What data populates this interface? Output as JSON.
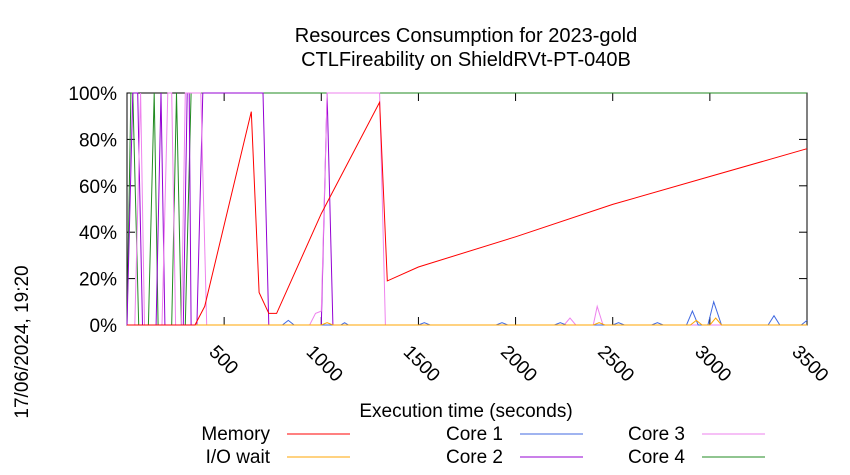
{
  "chart_data": {
    "type": "line",
    "title": "Resources Consumption for 2023-gold",
    "subtitle": "CTLFireability on ShieldRVt-PT-040B",
    "xlabel": "Execution time (seconds)",
    "ylabel": "",
    "side_label": "17/06/2024, 19:20",
    "xlim": [
      0,
      3500
    ],
    "ylim": [
      0,
      100
    ],
    "x_ticks": [
      500,
      1000,
      1500,
      2000,
      2500,
      3000,
      3500
    ],
    "y_ticks": [
      {
        "value": 0,
        "label": "0%"
      },
      {
        "value": 20,
        "label": "20%"
      },
      {
        "value": 40,
        "label": "40%"
      },
      {
        "value": 60,
        "label": "60%"
      },
      {
        "value": 80,
        "label": "80%"
      },
      {
        "value": 100,
        "label": "100%"
      }
    ],
    "grid": false,
    "legend_position": "bottom",
    "series": [
      {
        "name": "Memory",
        "color": "#ff0000",
        "points": [
          [
            0,
            0
          ],
          [
            350,
            0
          ],
          [
            400,
            8
          ],
          [
            640,
            92
          ],
          [
            680,
            14
          ],
          [
            730,
            5
          ],
          [
            770,
            5
          ],
          [
            1000,
            48
          ],
          [
            1300,
            96
          ],
          [
            1340,
            19
          ],
          [
            1500,
            25
          ],
          [
            2000,
            38
          ],
          [
            2500,
            52
          ],
          [
            3000,
            64
          ],
          [
            3500,
            76
          ]
        ]
      },
      {
        "name": "I/O wait",
        "color": "#ffa500",
        "points": [
          [
            0,
            0
          ],
          [
            1000,
            0
          ],
          [
            1030,
            1
          ],
          [
            1060,
            0
          ],
          [
            2400,
            0
          ],
          [
            2430,
            1
          ],
          [
            2460,
            0
          ],
          [
            2900,
            0
          ],
          [
            2930,
            2
          ],
          [
            2960,
            0
          ],
          [
            3000,
            0
          ],
          [
            3030,
            3
          ],
          [
            3060,
            0
          ],
          [
            3500,
            0
          ]
        ]
      },
      {
        "name": "Core 1",
        "color": "#4169e1",
        "points": [
          [
            0,
            0
          ],
          [
            800,
            0
          ],
          [
            830,
            2
          ],
          [
            860,
            0
          ],
          [
            1100,
            0
          ],
          [
            1120,
            1
          ],
          [
            1140,
            0
          ],
          [
            1500,
            0
          ],
          [
            1530,
            1
          ],
          [
            1560,
            0
          ],
          [
            1900,
            0
          ],
          [
            1930,
            1
          ],
          [
            1960,
            0
          ],
          [
            2200,
            0
          ],
          [
            2230,
            1
          ],
          [
            2260,
            0
          ],
          [
            2500,
            0
          ],
          [
            2530,
            1
          ],
          [
            2560,
            0
          ],
          [
            2700,
            0
          ],
          [
            2730,
            1
          ],
          [
            2760,
            0
          ],
          [
            2880,
            0
          ],
          [
            2910,
            6
          ],
          [
            2940,
            0
          ],
          [
            2990,
            0
          ],
          [
            3020,
            10
          ],
          [
            3060,
            0
          ],
          [
            3300,
            0
          ],
          [
            3330,
            4
          ],
          [
            3360,
            0
          ],
          [
            3470,
            0
          ],
          [
            3500,
            2
          ]
        ]
      },
      {
        "name": "Core 2",
        "color": "#9400d3",
        "points": [
          [
            0,
            0
          ],
          [
            30,
            100
          ],
          [
            55,
            100
          ],
          [
            80,
            0
          ],
          [
            150,
            0
          ],
          [
            175,
            100
          ],
          [
            195,
            0
          ],
          [
            260,
            0
          ],
          [
            290,
            0
          ],
          [
            310,
            100
          ],
          [
            320,
            100
          ],
          [
            330,
            0
          ],
          [
            360,
            0
          ],
          [
            390,
            100
          ],
          [
            420,
            100
          ],
          [
            700,
            100
          ],
          [
            730,
            0
          ],
          [
            1000,
            0
          ],
          [
            1030,
            100
          ],
          [
            1060,
            0
          ],
          [
            3500,
            0
          ]
        ]
      },
      {
        "name": "Core 3",
        "color": "#ee82ee",
        "points": [
          [
            0,
            0
          ],
          [
            40,
            0
          ],
          [
            70,
            100
          ],
          [
            90,
            0
          ],
          [
            180,
            0
          ],
          [
            210,
            100
          ],
          [
            230,
            100
          ],
          [
            250,
            0
          ],
          [
            280,
            0
          ],
          [
            300,
            100
          ],
          [
            380,
            100
          ],
          [
            410,
            0
          ],
          [
            940,
            0
          ],
          [
            970,
            5
          ],
          [
            1000,
            6
          ],
          [
            1030,
            100
          ],
          [
            1300,
            100
          ],
          [
            1330,
            0
          ],
          [
            2250,
            0
          ],
          [
            2280,
            3
          ],
          [
            2310,
            0
          ],
          [
            2400,
            0
          ],
          [
            2420,
            8
          ],
          [
            2450,
            0
          ],
          [
            3500,
            0
          ]
        ]
      },
      {
        "name": "Core 4",
        "color": "#228b22",
        "points": [
          [
            0,
            0
          ],
          [
            20,
            100
          ],
          [
            30,
            100
          ],
          [
            60,
            0
          ],
          [
            110,
            0
          ],
          [
            140,
            100
          ],
          [
            160,
            0
          ],
          [
            230,
            0
          ],
          [
            255,
            100
          ],
          [
            280,
            0
          ],
          [
            300,
            0
          ],
          [
            330,
            100
          ],
          [
            350,
            100
          ],
          [
            3500,
            100
          ]
        ]
      }
    ]
  }
}
